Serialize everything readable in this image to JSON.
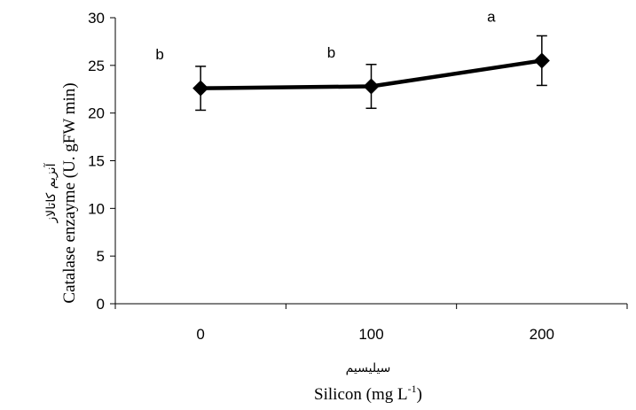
{
  "chart_data": {
    "type": "line",
    "categories": [
      "0",
      "100",
      "200"
    ],
    "series": [
      {
        "values": [
          22.6,
          22.8,
          25.5
        ],
        "error": [
          2.3,
          2.3,
          2.6
        ],
        "significance": [
          "b",
          "b",
          "a"
        ]
      }
    ],
    "y_ticks": [
      "0",
      "5",
      "10",
      "15",
      "20",
      "25",
      "30"
    ],
    "ylim": [
      0,
      30
    ],
    "xlabel": "Silicon (mg L",
    "xlabel_sup": "-1",
    "xlabel_close": ")",
    "xlabel_fa": "سیلیسیم",
    "ylabel": "Catalase enzayme (U. gFW min)",
    "ylabel_fa": "آنزیم کاتالاز",
    "grid": false,
    "legend": "none",
    "line_color": "#000000",
    "marker": "diamond"
  }
}
